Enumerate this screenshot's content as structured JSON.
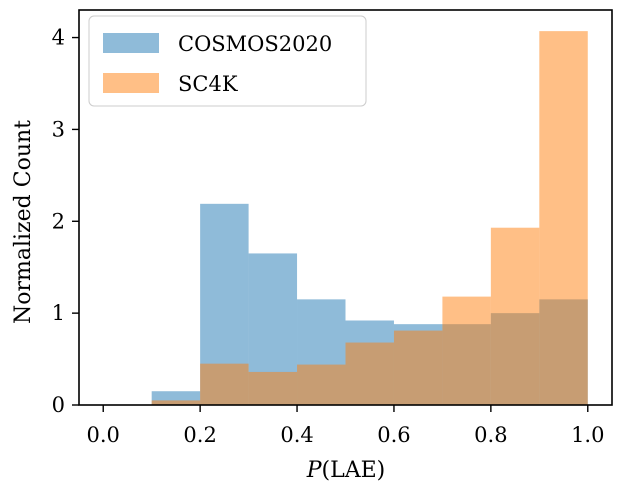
{
  "chart_data": {
    "type": "histogram",
    "xlabel_italic": "P",
    "xlabel_rest": "(LAE)",
    "ylabel": "Normalized Count",
    "xlim": [
      -0.05,
      1.05
    ],
    "ylim": [
      0,
      4.3
    ],
    "xticks": [
      0.0,
      0.2,
      0.4,
      0.6,
      0.8,
      1.0
    ],
    "xtick_labels": [
      "0.0",
      "0.2",
      "0.4",
      "0.6",
      "0.8",
      "1.0"
    ],
    "yticks": [
      0,
      1,
      2,
      3,
      4
    ],
    "ytick_labels": [
      "0",
      "1",
      "2",
      "3",
      "4"
    ],
    "bin_edges": [
      0.0,
      0.1,
      0.2,
      0.3,
      0.4,
      0.5,
      0.6,
      0.7,
      0.8,
      0.9,
      1.0
    ],
    "series": [
      {
        "name": "COSMOS2020",
        "color": "#1f77b4",
        "opacity": 0.5,
        "values": [
          0.0,
          0.15,
          2.19,
          1.65,
          1.15,
          0.92,
          0.88,
          0.88,
          1.0,
          1.15
        ]
      },
      {
        "name": "SC4K",
        "color": "#ff7f0e",
        "opacity": 0.5,
        "values": [
          0.0,
          0.05,
          0.45,
          0.36,
          0.44,
          0.68,
          0.81,
          1.18,
          1.93,
          4.07
        ]
      }
    ],
    "legend": {
      "position": "top-left",
      "entries": [
        "COSMOS2020",
        "SC4K"
      ]
    },
    "grid": false
  }
}
